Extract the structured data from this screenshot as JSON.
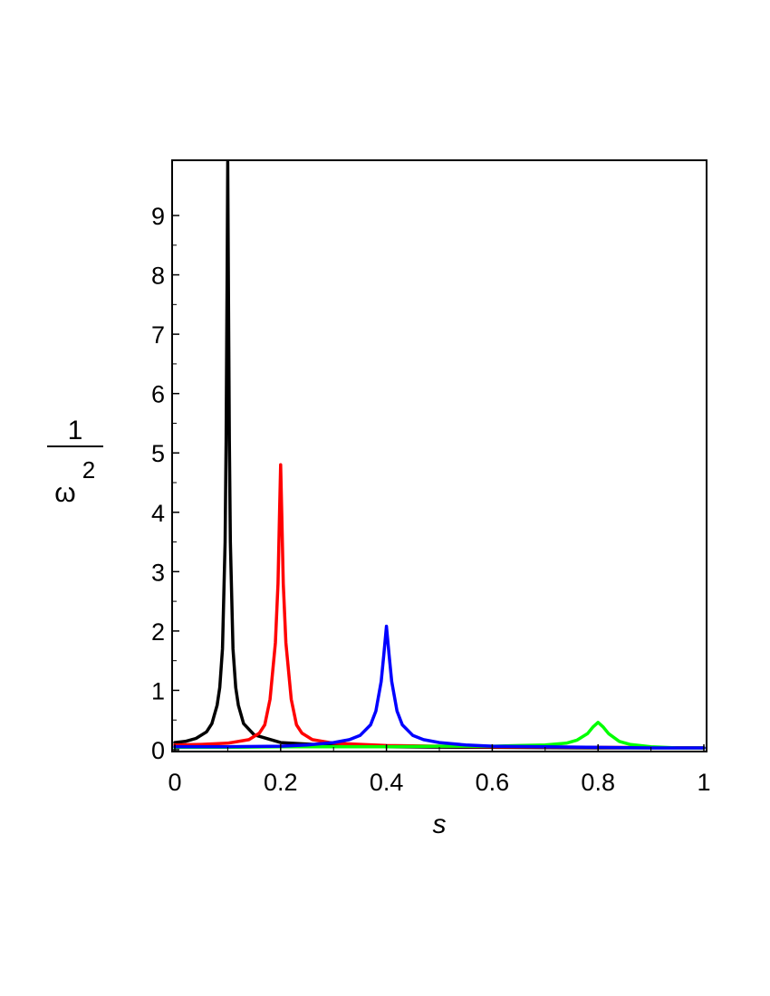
{
  "chart_data": {
    "type": "line",
    "title": "",
    "xlabel": "s",
    "ylabel": {
      "numerator": "1",
      "denominator": "ω",
      "exponent": "2"
    },
    "xlim": [
      0,
      1
    ],
    "ylim": [
      0,
      10
    ],
    "xticks": [
      0,
      0.2,
      0.4,
      0.6,
      0.8,
      1
    ],
    "xtick_labels": [
      "0",
      "0.2",
      "0.4",
      "0.6",
      "0.8",
      "1"
    ],
    "yticks": [
      0,
      1,
      2,
      3,
      4,
      5,
      6,
      7,
      8,
      9
    ],
    "ytick_labels": [
      "0",
      "1",
      "2",
      "3",
      "4",
      "5",
      "6",
      "7",
      "8",
      "9"
    ],
    "grid": false,
    "legend": "none",
    "series": [
      {
        "color": "#000000",
        "x": [
          0.0,
          0.02,
          0.04,
          0.06,
          0.07,
          0.08,
          0.085,
          0.09,
          0.095,
          0.097,
          0.099,
          0.1,
          0.101,
          0.103,
          0.105,
          0.11,
          0.115,
          0.12,
          0.13,
          0.15,
          0.2,
          0.3,
          0.4,
          0.6,
          0.8,
          1.0
        ],
        "y": [
          0.12,
          0.14,
          0.19,
          0.3,
          0.44,
          0.75,
          1.05,
          1.7,
          3.5,
          5.2,
          8.2,
          9.9,
          8.2,
          5.2,
          3.5,
          1.7,
          1.05,
          0.75,
          0.44,
          0.25,
          0.12,
          0.07,
          0.05,
          0.04,
          0.03,
          0.03
        ]
      },
      {
        "color": "#ff0000",
        "x": [
          0.0,
          0.05,
          0.1,
          0.14,
          0.16,
          0.17,
          0.18,
          0.19,
          0.195,
          0.198,
          0.2,
          0.202,
          0.205,
          0.21,
          0.22,
          0.23,
          0.24,
          0.26,
          0.3,
          0.4,
          0.5,
          0.6,
          0.8,
          1.0
        ],
        "y": [
          0.08,
          0.09,
          0.11,
          0.17,
          0.28,
          0.42,
          0.85,
          1.8,
          2.8,
          4.0,
          4.8,
          4.0,
          2.8,
          1.8,
          0.85,
          0.42,
          0.28,
          0.17,
          0.11,
          0.07,
          0.06,
          0.05,
          0.04,
          0.03
        ]
      },
      {
        "color": "#00ff00",
        "x": [
          0.0,
          0.1,
          0.2,
          0.3,
          0.4,
          0.5,
          0.6,
          0.65,
          0.7,
          0.74,
          0.76,
          0.78,
          0.79,
          0.8,
          0.81,
          0.82,
          0.84,
          0.86,
          0.9,
          0.95,
          1.0
        ],
        "y": [
          0.04,
          0.04,
          0.05,
          0.05,
          0.05,
          0.06,
          0.06,
          0.07,
          0.08,
          0.11,
          0.16,
          0.27,
          0.38,
          0.46,
          0.38,
          0.27,
          0.14,
          0.09,
          0.05,
          0.03,
          0.03
        ]
      },
      {
        "color": "#0000ff",
        "x": [
          0.0,
          0.1,
          0.2,
          0.25,
          0.3,
          0.33,
          0.35,
          0.37,
          0.38,
          0.39,
          0.395,
          0.4,
          0.405,
          0.41,
          0.42,
          0.43,
          0.45,
          0.47,
          0.5,
          0.55,
          0.6,
          0.7,
          0.8,
          0.9,
          1.0
        ],
        "y": [
          0.05,
          0.05,
          0.06,
          0.08,
          0.12,
          0.17,
          0.24,
          0.42,
          0.65,
          1.15,
          1.6,
          2.08,
          1.6,
          1.15,
          0.65,
          0.42,
          0.24,
          0.17,
          0.12,
          0.08,
          0.06,
          0.05,
          0.04,
          0.03,
          0.03
        ]
      }
    ]
  }
}
